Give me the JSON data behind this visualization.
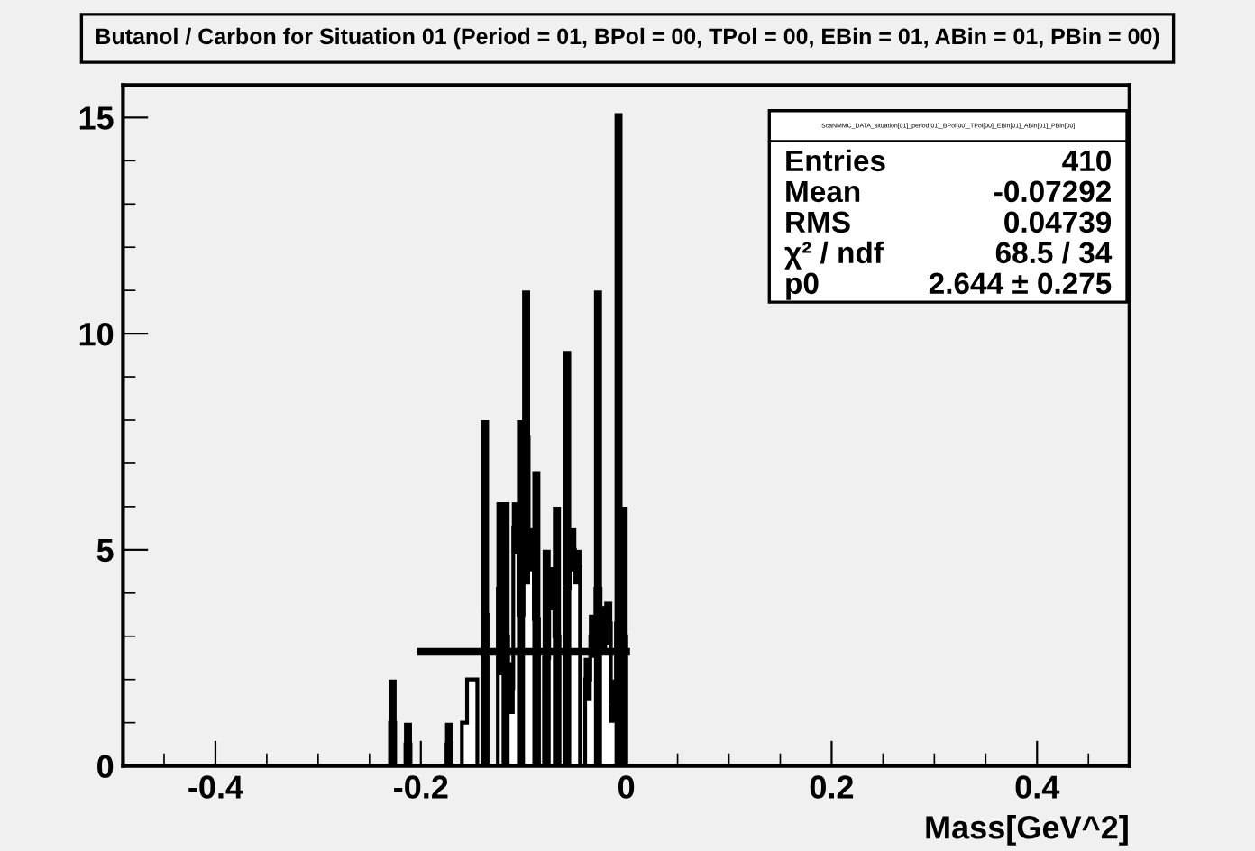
{
  "chart_data": {
    "type": "histogram",
    "title": "Butanol / Carbon for Situation 01 (Period = 01, BPol = 00, TPol = 00, EBin = 01, ABin = 01, PBin = 00)",
    "xlabel": "Mass[GeV^2]",
    "bins": [
      -0.235,
      -0.23,
      -0.225,
      -0.22,
      -0.215,
      -0.21,
      -0.205,
      -0.2,
      -0.195,
      -0.19,
      -0.185,
      -0.18,
      -0.175,
      -0.17,
      -0.165,
      -0.16,
      -0.155,
      -0.15,
      -0.145,
      -0.14,
      -0.135,
      -0.13,
      -0.125,
      -0.12,
      -0.115,
      -0.11,
      -0.105,
      -0.1,
      -0.095,
      -0.09,
      -0.085,
      -0.08,
      -0.075,
      -0.07,
      -0.065,
      -0.06,
      -0.055,
      -0.05,
      -0.045,
      -0.04,
      -0.035,
      -0.03,
      -0.025,
      -0.02,
      -0.015,
      -0.01,
      -0.005,
      0.0
    ],
    "series": [
      {
        "color": "#ffffff",
        "values": [
          0,
          1,
          0,
          0,
          0.5,
          0,
          0,
          0,
          0,
          0,
          0,
          0,
          0.5,
          0,
          0,
          1,
          2,
          2,
          0,
          3.5,
          0,
          0,
          4.1,
          3.0,
          1.8,
          5.5,
          3.5,
          7.6,
          5.0,
          3.4,
          0,
          2.5,
          4.1,
          3.0,
          0,
          4.1,
          5.0,
          4.6,
          0,
          2.0,
          3.0,
          4.1,
          3.2,
          3.3,
          1.5,
          3.3,
          3.0
        ],
        "errors": [
          null,
          1,
          null,
          null,
          0.5,
          null,
          null,
          null,
          null,
          null,
          null,
          null,
          0.5,
          null,
          null,
          null,
          null,
          null,
          null,
          [
            0,
            8
          ],
          null,
          null,
          2.0,
          [
            0,
            6.1
          ],
          0.6,
          0.6,
          [
            0,
            8
          ],
          3.4,
          0.5,
          3.4,
          null,
          2.5,
          0.5,
          3.0,
          null,
          [
            0,
            9.6
          ],
          0.5,
          0.4,
          null,
          0.5,
          0.5,
          [
            0,
            11
          ],
          0.5,
          0.5,
          0.5,
          [
            0,
            15.1
          ],
          3.0
        ]
      },
      {
        "type": "line",
        "color": "#000000",
        "x": [
          -0.2,
          0.0
        ],
        "values": [
          2.64,
          2.64
        ]
      }
    ],
    "xlim": [
      -0.49,
      0.49
    ],
    "xticks": [
      -0.4,
      -0.2,
      0,
      0.2,
      0.4
    ],
    "ylim": [
      0,
      15.75
    ],
    "yticks": [
      0,
      5,
      10,
      15
    ],
    "grid": false,
    "legend": false,
    "annotations": [
      "ScaNMMC_DATA_situation[01]_period[01]_BPol[00]_TPol[00]_EBin[01]_ABin[01]_PBin[00]",
      "Entries",
      "410",
      "Mean",
      "-0.07292",
      "RMS",
      "0.04739",
      "χ² / ndf",
      "68.5 / 34",
      "p0",
      "2.644 ± 0.275"
    ]
  }
}
